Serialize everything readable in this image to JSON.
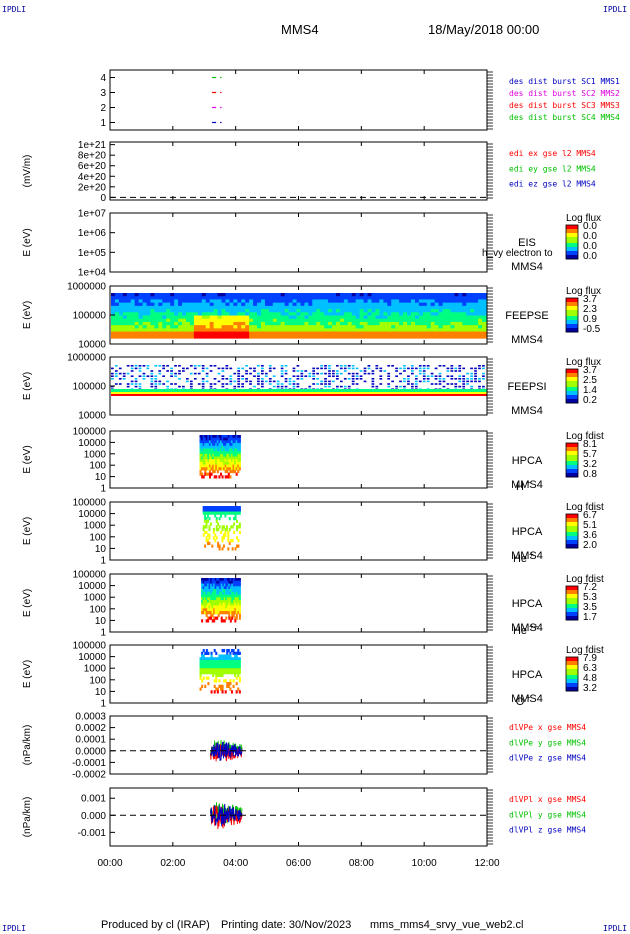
{
  "header": {
    "corner_tag": "IPDLI",
    "spacecraft": "MMS4",
    "datetime": "18/May/2018 00:00"
  },
  "footer": {
    "produced_by": "Produced by cl (IRAP)",
    "printing_date": "Printing date: 30/Nov/2023",
    "script_name": "mms_mms4_srvy_vue_web2.cl"
  },
  "colors": {
    "red": "#ff0000",
    "green": "#00c000",
    "blue": "#0000c0",
    "magenta": "#e000e0",
    "spectrogram_scale": [
      "#0000a0",
      "#0040ff",
      "#00c0ff",
      "#00ff80",
      "#a0ff00",
      "#ffff00",
      "#ff8000",
      "#ff0000"
    ]
  },
  "chart_data": {
    "type": "multi-panel time series",
    "x_ticks": [
      "00:00",
      "02:00",
      "04:00",
      "06:00",
      "08:00",
      "10:00",
      "12:00"
    ],
    "x_range_hours": [
      0,
      12
    ],
    "panels": [
      {
        "id": "burst",
        "type": "scatter",
        "ylabel": "",
        "yticks": [
          "4",
          "3",
          "2",
          "1"
        ],
        "ytick_values": [
          4,
          3,
          2,
          1
        ],
        "ylim": [
          0.5,
          4.5
        ],
        "series": [
          {
            "name": "des dist burst SC1 MMS1",
            "color": "#0000c0",
            "y": 1,
            "x_hours": [
              3.25,
              3.55
            ]
          },
          {
            "name": "des dist burst SC2 MMS2",
            "color": "#e000e0",
            "y": 2,
            "x_hours": [
              3.25,
              3.55
            ]
          },
          {
            "name": "des dist burst SC3 MMS3",
            "color": "#ff0000",
            "y": 3,
            "x_hours": [
              3.25,
              3.55
            ]
          },
          {
            "name": "des dist burst SC4 MMS4",
            "color": "#00c000",
            "y": 4,
            "x_hours": [
              3.25,
              3.55
            ]
          }
        ],
        "legend_order": [
          {
            "text": "des dist burst SC1 MMS1",
            "color": "#0000c0"
          },
          {
            "text": "des dist burst SC2 MMS2",
            "color": "#e000e0"
          },
          {
            "text": "des dist burst SC3 MMS3",
            "color": "#ff0000"
          },
          {
            "text": "des dist burst SC4 MMS4",
            "color": "#00c000"
          }
        ]
      },
      {
        "id": "edi",
        "type": "line",
        "ylabel": "(mV/m)",
        "yticks": [
          "1e+21",
          "8e+20",
          "6e+20",
          "4e+20",
          "2e+20",
          "0"
        ],
        "ytick_values": [
          1.0,
          0.8,
          0.6,
          0.4,
          0.2,
          0.0
        ],
        "ylim": [
          -0.05,
          1.05
        ],
        "zero_line": 0.0,
        "legend_order": [
          {
            "text": "edi ex gse l2 MMS4",
            "color": "#ff0000"
          },
          {
            "text": "edi ey gse l2 MMS4",
            "color": "#00c000"
          },
          {
            "text": "edi ez gse l2 MMS4",
            "color": "#0000c0"
          }
        ]
      },
      {
        "id": "eis",
        "type": "heatmap",
        "ylabel": "E (eV)",
        "yticks": [
          "1e+07",
          "1e+06",
          "1e+05",
          "1e+04"
        ],
        "log_range": [
          4,
          7
        ],
        "instrument": [
          "EIS",
          "MMS4"
        ],
        "overlap_text": "h_vy electron to",
        "colorbar_title": "Log flux",
        "colorbar_labels": [
          "0.0",
          "0.0",
          "0.0",
          "0.0"
        ]
      },
      {
        "id": "feepse",
        "type": "heatmap",
        "ylabel": "E (eV)",
        "yticks": [
          "1000000",
          "100000",
          "10000"
        ],
        "log_range": [
          4,
          6.08
        ],
        "instrument": [
          "FEEPSE",
          "MMS4"
        ],
        "colorbar_title": "Log flux",
        "colorbar_labels": [
          "3.7",
          "2.3",
          "0.9",
          "-0.5"
        ]
      },
      {
        "id": "feepsi",
        "type": "heatmap",
        "ylabel": "E (eV)",
        "yticks": [
          "1000000",
          "100000",
          "10000"
        ],
        "log_range": [
          4,
          6.08
        ],
        "instrument": [
          "FEEPSI",
          "MMS4"
        ],
        "colorbar_title": "Log flux",
        "colorbar_labels": [
          "3.7",
          "2.5",
          "1.4",
          "0.2"
        ]
      },
      {
        "id": "hpca_h",
        "type": "heatmap",
        "ylabel": "E (eV)",
        "yticks": [
          "100000",
          "10000",
          "1000",
          "100",
          "10",
          "1"
        ],
        "log_range": [
          0,
          5
        ],
        "instrument": [
          "HPCA",
          "MMS4"
        ],
        "species": "H",
        "species_sup": "+",
        "colorbar_title": "Log fdist",
        "colorbar_labels": [
          "8.1",
          "5.7",
          "3.2",
          "0.8"
        ],
        "x_hours": [
          2.85,
          4.15
        ]
      },
      {
        "id": "hpca_he",
        "type": "heatmap",
        "ylabel": "E (eV)",
        "yticks": [
          "100000",
          "10000",
          "1000",
          "100",
          "10",
          "1"
        ],
        "log_range": [
          0,
          5
        ],
        "instrument": [
          "HPCA",
          "MMS4"
        ],
        "species": "He",
        "species_sup": "+",
        "colorbar_title": "Log fdist",
        "colorbar_labels": [
          "6.7",
          "5.1",
          "3.6",
          "2.0"
        ],
        "x_hours": [
          2.95,
          4.15
        ]
      },
      {
        "id": "hpca_hepp",
        "type": "heatmap",
        "ylabel": "E (eV)",
        "yticks": [
          "100000",
          "10000",
          "1000",
          "100",
          "10",
          "1"
        ],
        "log_range": [
          0,
          5
        ],
        "instrument": [
          "HPCA",
          "MMS4"
        ],
        "species": "He",
        "species_sup": "++",
        "colorbar_title": "Log fdist",
        "colorbar_labels": [
          "7.2",
          "5.3",
          "3.5",
          "1.7"
        ],
        "x_hours": [
          2.9,
          4.15
        ]
      },
      {
        "id": "hpca_o",
        "type": "heatmap",
        "ylabel": "E (eV)",
        "yticks": [
          "100000",
          "10000",
          "1000",
          "100",
          "10",
          "1"
        ],
        "log_range": [
          0,
          5
        ],
        "instrument": [
          "HPCA",
          "MMS4"
        ],
        "species": "O",
        "species_sup": "+",
        "colorbar_title": "Log fdist",
        "colorbar_labels": [
          "7.9",
          "6.3",
          "4.8",
          "3.2"
        ],
        "x_hours": [
          2.85,
          4.15
        ]
      },
      {
        "id": "divpe",
        "type": "line",
        "ylabel": "(nPa/km)",
        "yticks": [
          "0.0003",
          "0.0002",
          "0.0001",
          "0.0000",
          "-0.0001",
          "-0.0002"
        ],
        "ytick_values": [
          0.0003,
          0.0002,
          0.0001,
          0.0,
          -0.0001,
          -0.0002
        ],
        "ylim": [
          -0.0002,
          0.0003
        ],
        "zero_line": 0.0,
        "x_hours": [
          3.2,
          4.2
        ],
        "legend_order": [
          {
            "text": "dlVPe x gse MMS4",
            "color": "#ff0000"
          },
          {
            "text": "dlVPe y gse MMS4",
            "color": "#00c000"
          },
          {
            "text": "dlVPe z gse MMS4",
            "color": "#0000c0"
          }
        ]
      },
      {
        "id": "divpi",
        "type": "line",
        "ylabel": "(nPa/km)",
        "yticks": [
          "0.001",
          "0.000",
          "-0.001"
        ],
        "ytick_values": [
          0.001,
          0.0,
          -0.001
        ],
        "ylim": [
          -0.0018,
          0.0016
        ],
        "zero_line": 0.0,
        "x_hours": [
          3.2,
          4.2
        ],
        "legend_order": [
          {
            "text": "dlVPl x gse MMS4",
            "color": "#ff0000"
          },
          {
            "text": "dlVPl y gse MMS4",
            "color": "#00c000"
          },
          {
            "text": "dlVPl z gse MMS4",
            "color": "#0000c0"
          }
        ]
      }
    ]
  }
}
